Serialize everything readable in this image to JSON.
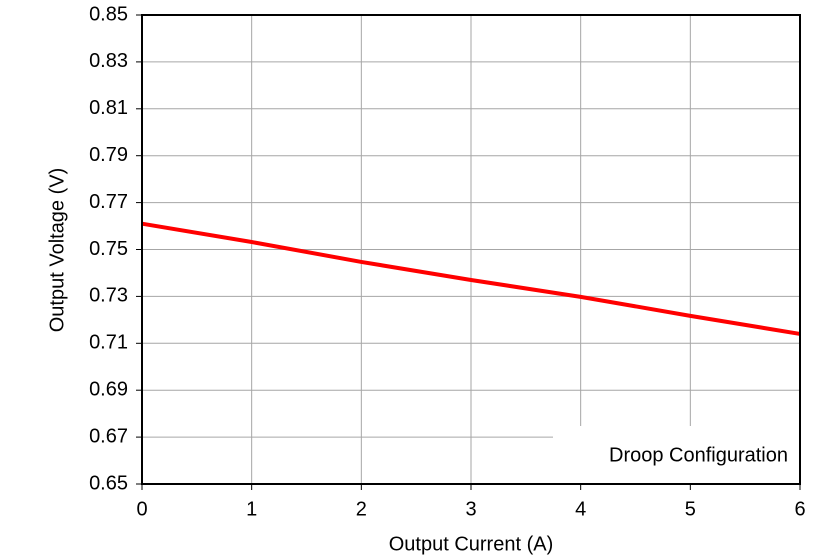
{
  "chart_data": {
    "type": "line",
    "x_label": "Output Current (A)",
    "y_label": "Output Voltage (V)",
    "annotation": "Droop Configuration",
    "x": [
      0,
      1,
      2,
      3,
      4,
      5,
      6
    ],
    "series": [
      {
        "name": "Droop",
        "color": "#ff0000",
        "values": [
          0.761,
          0.7532,
          0.7447,
          0.737,
          0.7298,
          0.7217,
          0.714
        ]
      }
    ],
    "xlim": [
      0,
      6
    ],
    "xticks": [
      0,
      1,
      2,
      3,
      4,
      5,
      6
    ],
    "ylim": [
      0.65,
      0.85
    ],
    "yticks": [
      0.65,
      0.67,
      0.69,
      0.71,
      0.73,
      0.75,
      0.77,
      0.79,
      0.81,
      0.83,
      0.85
    ],
    "grid": true
  }
}
